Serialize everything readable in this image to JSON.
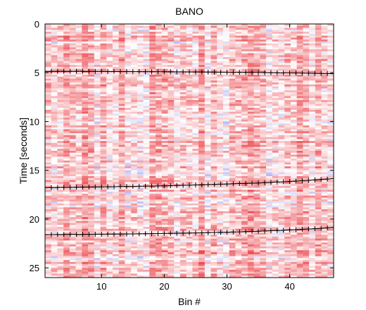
{
  "chart_data": {
    "type": "heatmap",
    "title": "BANO",
    "xlabel": "Bin #",
    "ylabel": "Time [seconds]",
    "xlim": [
      1,
      47
    ],
    "ylim": [
      0,
      26
    ],
    "y_inverted": true,
    "grid": false,
    "legend": "none",
    "colormap": [
      "#3a3ad8",
      "#ffffff",
      "#e8242b"
    ],
    "x_ticks": [
      10,
      20,
      30,
      40
    ],
    "y_ticks": [
      0,
      5,
      10,
      15,
      20,
      25
    ],
    "x_tick_labels": [
      "10",
      "20",
      "30",
      "40"
    ],
    "y_tick_labels": [
      "0",
      "5",
      "10",
      "15",
      "20",
      "25"
    ],
    "arrival_lines": [
      {
        "marker": "+",
        "color": "#000000",
        "x": [
          1,
          5,
          10,
          15,
          20,
          25,
          30,
          35,
          40,
          45,
          47
        ],
        "y": [
          4.85,
          4.86,
          4.87,
          4.88,
          4.9,
          4.92,
          4.95,
          4.98,
          5.02,
          5.07,
          5.1
        ]
      },
      {
        "marker": "+",
        "color": "#000000",
        "x": [
          1,
          5,
          10,
          15,
          20,
          25,
          30,
          35,
          40,
          45,
          47
        ],
        "y": [
          16.8,
          16.75,
          16.7,
          16.65,
          16.6,
          16.5,
          16.4,
          16.3,
          16.15,
          15.95,
          15.85
        ]
      },
      {
        "marker": "+",
        "color": "#000000",
        "x": [
          1,
          5,
          10,
          15,
          20,
          25,
          30,
          35,
          40,
          45,
          47
        ],
        "y": [
          21.6,
          21.58,
          21.55,
          21.52,
          21.48,
          21.42,
          21.35,
          21.25,
          21.12,
          20.95,
          20.85
        ]
      }
    ]
  }
}
